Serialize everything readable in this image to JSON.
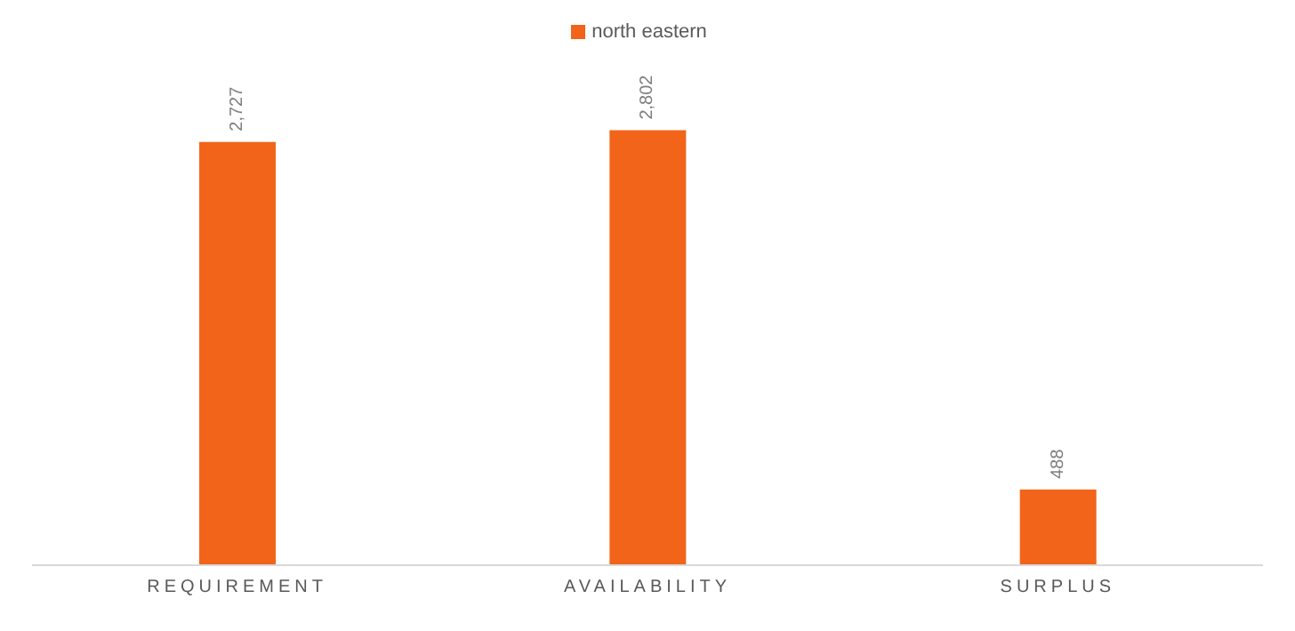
{
  "chart_data": {
    "type": "bar",
    "categories": [
      "REQUIREMENT",
      "AVAILABILITY",
      "SURPLUS"
    ],
    "series": [
      {
        "name": "north eastern",
        "color": "#f26419",
        "values": [
          2727,
          2802,
          488
        ],
        "value_labels": [
          "2,727",
          "2,802",
          "488"
        ]
      }
    ],
    "legend": "top"
  }
}
